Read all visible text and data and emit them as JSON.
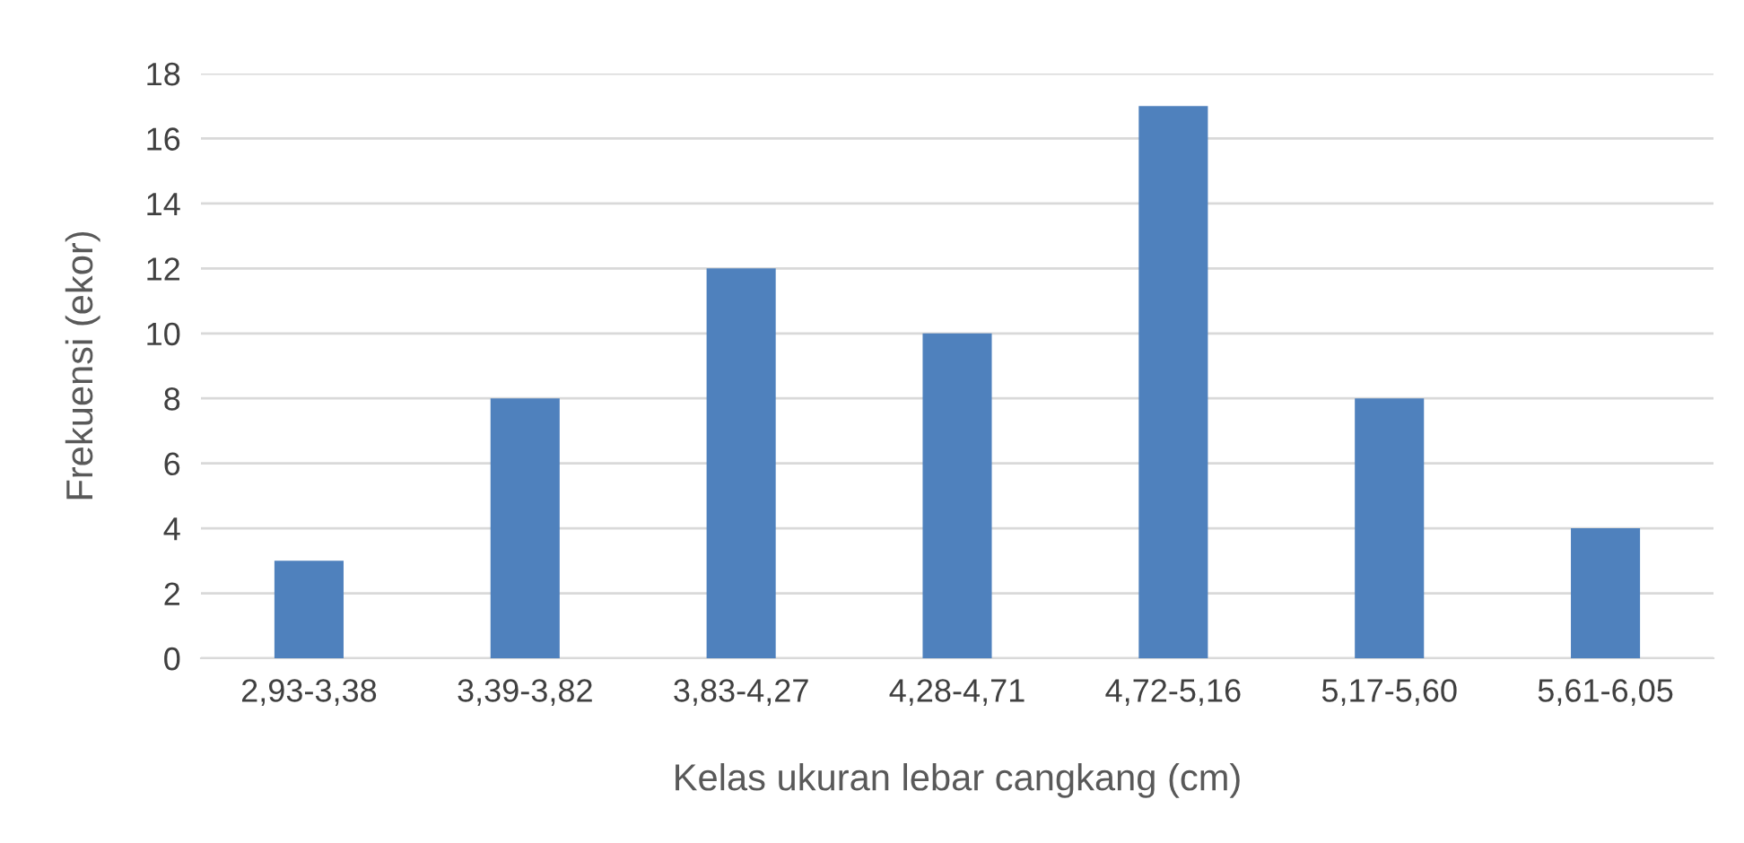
{
  "chart_data": {
    "type": "bar",
    "xlabel": "Kelas ukuran lebar cangkang (cm)",
    "ylabel": "Frekuensi (ekor)",
    "categories": [
      "2,93-3,38",
      "3,39-3,82",
      "3,83-4,27",
      "4,28-4,71",
      "4,72-5,16",
      "5,17-5,60",
      "5,61-6,05"
    ],
    "values": [
      3,
      8,
      12,
      10,
      17,
      8,
      4
    ],
    "color": "#4f81bd",
    "ylim": [
      0,
      18
    ],
    "yticks": [
      0,
      2,
      4,
      6,
      8,
      10,
      12,
      14,
      16,
      18
    ],
    "grid": "y"
  }
}
